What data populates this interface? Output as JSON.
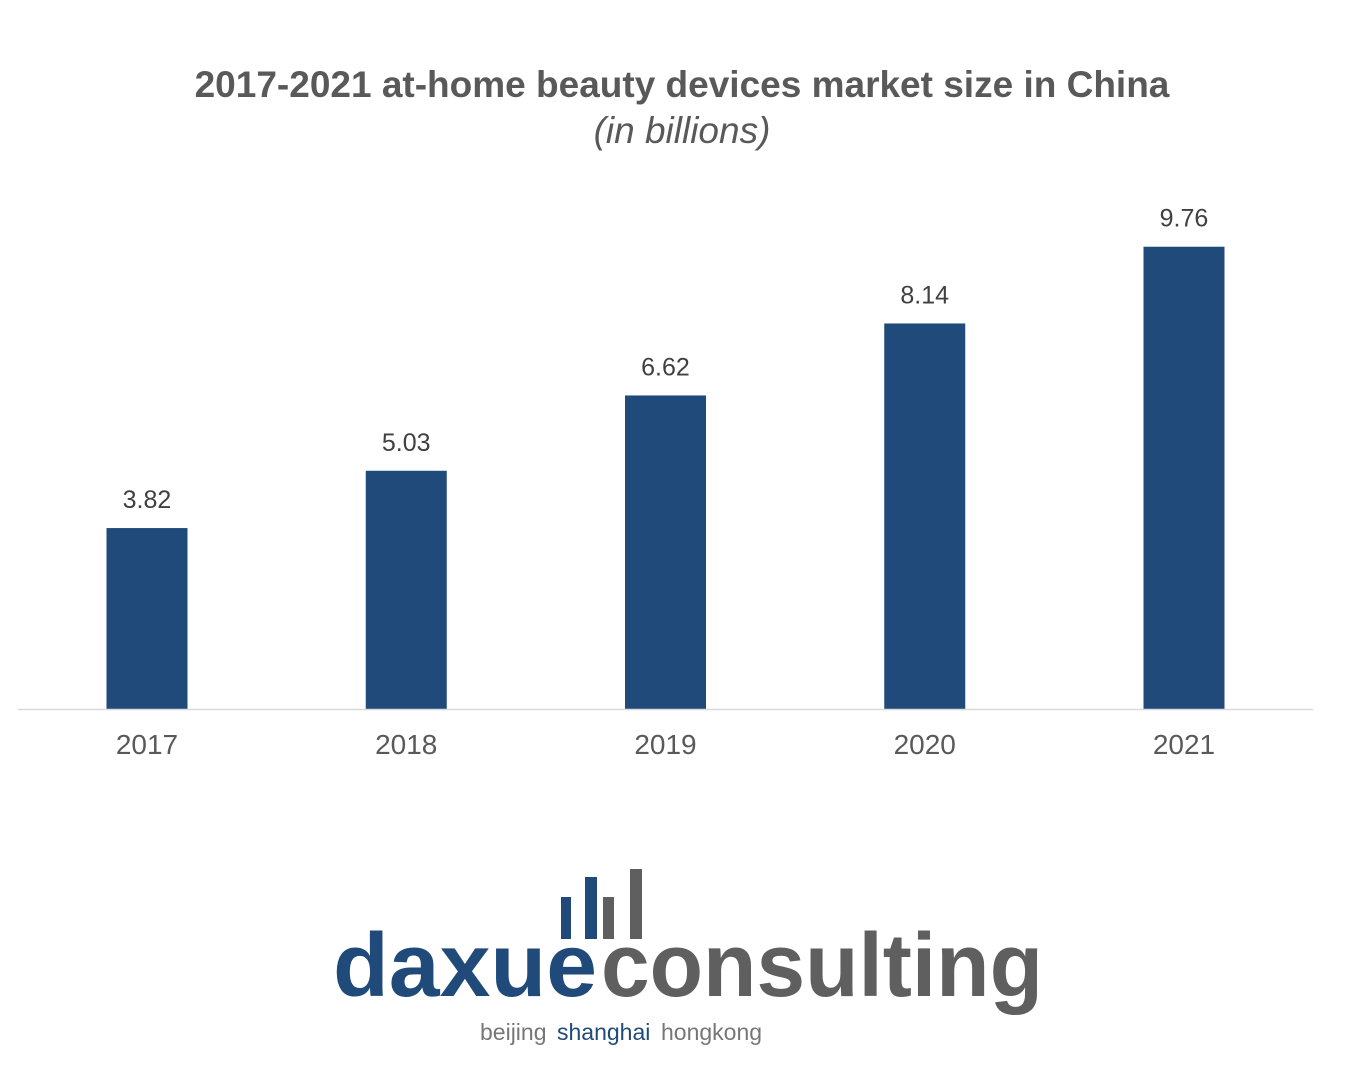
{
  "chart_data": {
    "type": "bar",
    "title": "2017-2021 at-home beauty devices market size in China",
    "subtitle": "(in billions)",
    "categories": [
      "2017",
      "2018",
      "2019",
      "2020",
      "2021"
    ],
    "values": [
      3.82,
      5.03,
      6.62,
      8.14,
      9.76
    ],
    "data_labels": [
      "3.82",
      "5.03",
      "6.62",
      "8.14",
      "9.76"
    ],
    "xlabel": "",
    "ylabel": "",
    "ylim": [
      0,
      11
    ],
    "grid": false,
    "y_axis_shown": false,
    "bar_color": "#1F4A7A"
  },
  "logo": {
    "part1": "daxue",
    "part2": "consulting",
    "tag_city1": "beijing",
    "tag_city2": "shanghai",
    "tag_city3": "hongkong",
    "blue": "#1F4A7A",
    "gray": "#5F5F5F"
  }
}
